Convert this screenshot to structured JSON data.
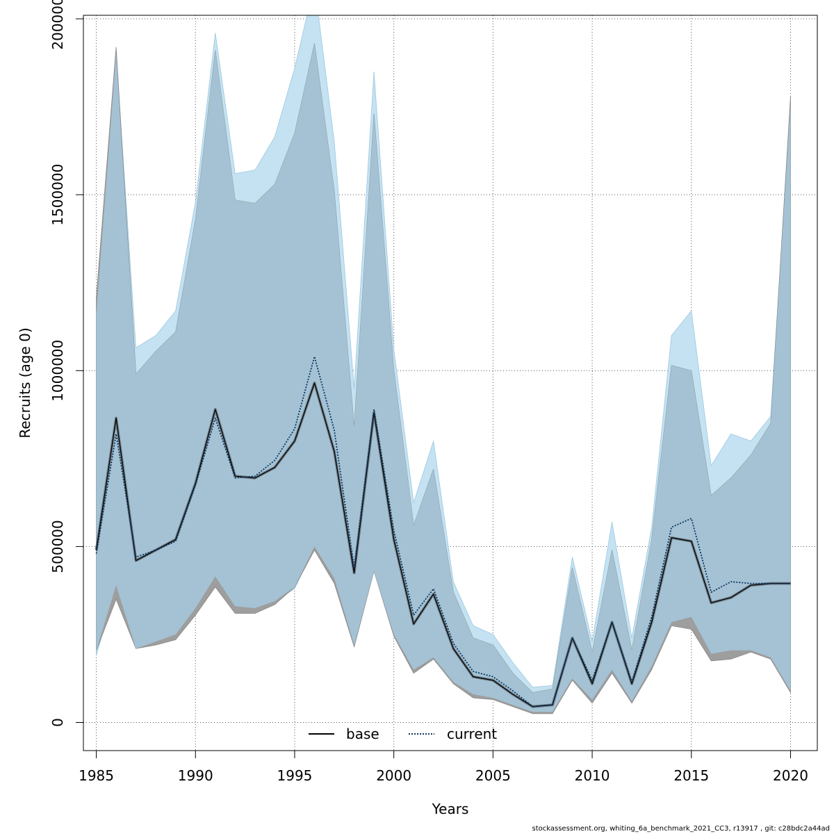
{
  "chart_data": {
    "type": "area",
    "xlabel": "Years",
    "ylabel": "Recruits (age 0)",
    "xlim": [
      1984.35,
      2021.35
    ],
    "ylim": [
      -80000,
      2010000
    ],
    "x_ticks": [
      1985,
      1990,
      1995,
      2000,
      2005,
      2010,
      2015,
      2020
    ],
    "x_tick_labels": [
      "1985",
      "1990",
      "1995",
      "2000",
      "2005",
      "2010",
      "2015",
      "2020"
    ],
    "y_ticks": [
      0,
      500000,
      1000000,
      1500000,
      2000000
    ],
    "y_tick_labels": [
      "0",
      "500000",
      "1000000",
      "1500000",
      "2000000"
    ],
    "grid": true,
    "legend_position": "bottom-center",
    "colors": {
      "current_band": "#c4e2f2",
      "base_band": "#9e9e9e",
      "overlap_band": "#a4c2d4",
      "base_line": "#000000",
      "current_line": "#0a3560"
    },
    "x": [
      1985,
      1986,
      1987,
      1988,
      1989,
      1990,
      1991,
      1992,
      1993,
      1994,
      1995,
      1996,
      1997,
      1998,
      1999,
      2000,
      2001,
      2002,
      2003,
      2004,
      2005,
      2006,
      2007,
      2008,
      2009,
      2010,
      2011,
      2012,
      2013,
      2014,
      2015,
      2016,
      2017,
      2018,
      2019,
      2020
    ],
    "series": [
      {
        "name": "base",
        "line_style": "solid",
        "values": [
          490000,
          865000,
          460000,
          490000,
          520000,
          680000,
          890000,
          700000,
          695000,
          725000,
          800000,
          965000,
          770000,
          425000,
          880000,
          520000,
          280000,
          365000,
          210000,
          130000,
          120000,
          80000,
          45000,
          50000,
          240000,
          110000,
          285000,
          110000,
          285000,
          525000,
          515000,
          340000,
          355000,
          390000,
          395000,
          395000
        ],
        "lower": [
          205000,
          350000,
          210000,
          220000,
          235000,
          305000,
          385000,
          310000,
          310000,
          335000,
          385000,
          490000,
          395000,
          215000,
          430000,
          245000,
          140000,
          180000,
          110000,
          70000,
          65000,
          45000,
          25000,
          25000,
          120000,
          55000,
          140000,
          55000,
          150000,
          275000,
          265000,
          175000,
          180000,
          200000,
          180000,
          85000
        ],
        "upper": [
          1210000,
          1920000,
          990000,
          1055000,
          1110000,
          1430000,
          1910000,
          1485000,
          1475000,
          1530000,
          1675000,
          1930000,
          1510000,
          840000,
          1730000,
          1000000,
          560000,
          720000,
          370000,
          240000,
          220000,
          140000,
          85000,
          95000,
          440000,
          200000,
          490000,
          205000,
          520000,
          1015000,
          1000000,
          645000,
          695000,
          760000,
          850000,
          1780000
        ]
      },
      {
        "name": "current",
        "line_style": "dotted",
        "values": [
          480000,
          820000,
          470000,
          490000,
          515000,
          675000,
          865000,
          695000,
          700000,
          745000,
          835000,
          1040000,
          830000,
          440000,
          890000,
          545000,
          305000,
          380000,
          225000,
          145000,
          130000,
          90000,
          45000,
          50000,
          240000,
          120000,
          285000,
          115000,
          300000,
          555000,
          580000,
          370000,
          400000,
          395000,
          395000,
          395000
        ],
        "lower": [
          190000,
          390000,
          210000,
          230000,
          250000,
          325000,
          415000,
          330000,
          325000,
          345000,
          380000,
          500000,
          410000,
          220000,
          430000,
          250000,
          150000,
          185000,
          115000,
          80000,
          70000,
          50000,
          30000,
          30000,
          125000,
          65000,
          150000,
          60000,
          160000,
          285000,
          300000,
          195000,
          205000,
          205000,
          185000,
          90000
        ],
        "upper": [
          1160000,
          1900000,
          1065000,
          1100000,
          1170000,
          1480000,
          1960000,
          1560000,
          1570000,
          1665000,
          1860000,
          2100000,
          1650000,
          950000,
          1850000,
          1060000,
          625000,
          800000,
          400000,
          275000,
          250000,
          170000,
          100000,
          105000,
          470000,
          230000,
          570000,
          240000,
          555000,
          1100000,
          1170000,
          730000,
          820000,
          800000,
          870000,
          1760000
        ]
      }
    ]
  },
  "legend": {
    "base_label": "base",
    "current_label": "current"
  },
  "footer_text": "stockassessment.org, whiting_6a_benchmark_2021_CC3, r13917 , git: c28bdc2a44ad"
}
